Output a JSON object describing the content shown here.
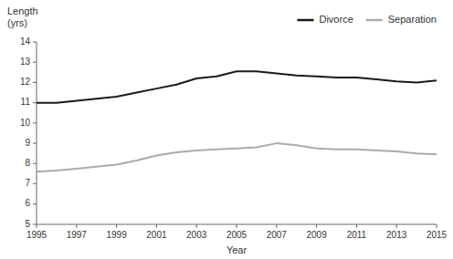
{
  "chart_data": {
    "type": "line",
    "x": [
      1995,
      1996,
      1997,
      1998,
      1999,
      2000,
      2001,
      2002,
      2003,
      2004,
      2005,
      2006,
      2007,
      2008,
      2009,
      2010,
      2011,
      2012,
      2013,
      2014,
      2015
    ],
    "series": [
      {
        "name": "Divorce",
        "color": "#1a1a1a",
        "values": [
          11.0,
          11.0,
          11.1,
          11.2,
          11.3,
          11.5,
          11.7,
          11.9,
          12.2,
          12.3,
          12.55,
          12.55,
          12.45,
          12.35,
          12.3,
          12.25,
          12.25,
          12.15,
          12.05,
          12.0,
          12.1
        ]
      },
      {
        "name": "Separation",
        "color": "#aaaaaa",
        "values": [
          7.6,
          7.65,
          7.75,
          7.85,
          7.95,
          8.15,
          8.4,
          8.55,
          8.65,
          8.7,
          8.75,
          8.8,
          9.0,
          8.9,
          8.75,
          8.7,
          8.7,
          8.65,
          8.6,
          8.5,
          8.45
        ]
      }
    ],
    "xlabel": "Year",
    "ylabel": [
      "Length",
      "(yrs)"
    ],
    "xlim": [
      1995,
      2015
    ],
    "xticks": [
      1995,
      1997,
      1999,
      2001,
      2003,
      2005,
      2007,
      2009,
      2011,
      2013,
      2015
    ],
    "ylim": [
      5,
      14
    ],
    "yticks": [
      5,
      6,
      7,
      8,
      9,
      10,
      11,
      12,
      13,
      14
    ],
    "legend": "upper right",
    "grid": false
  }
}
